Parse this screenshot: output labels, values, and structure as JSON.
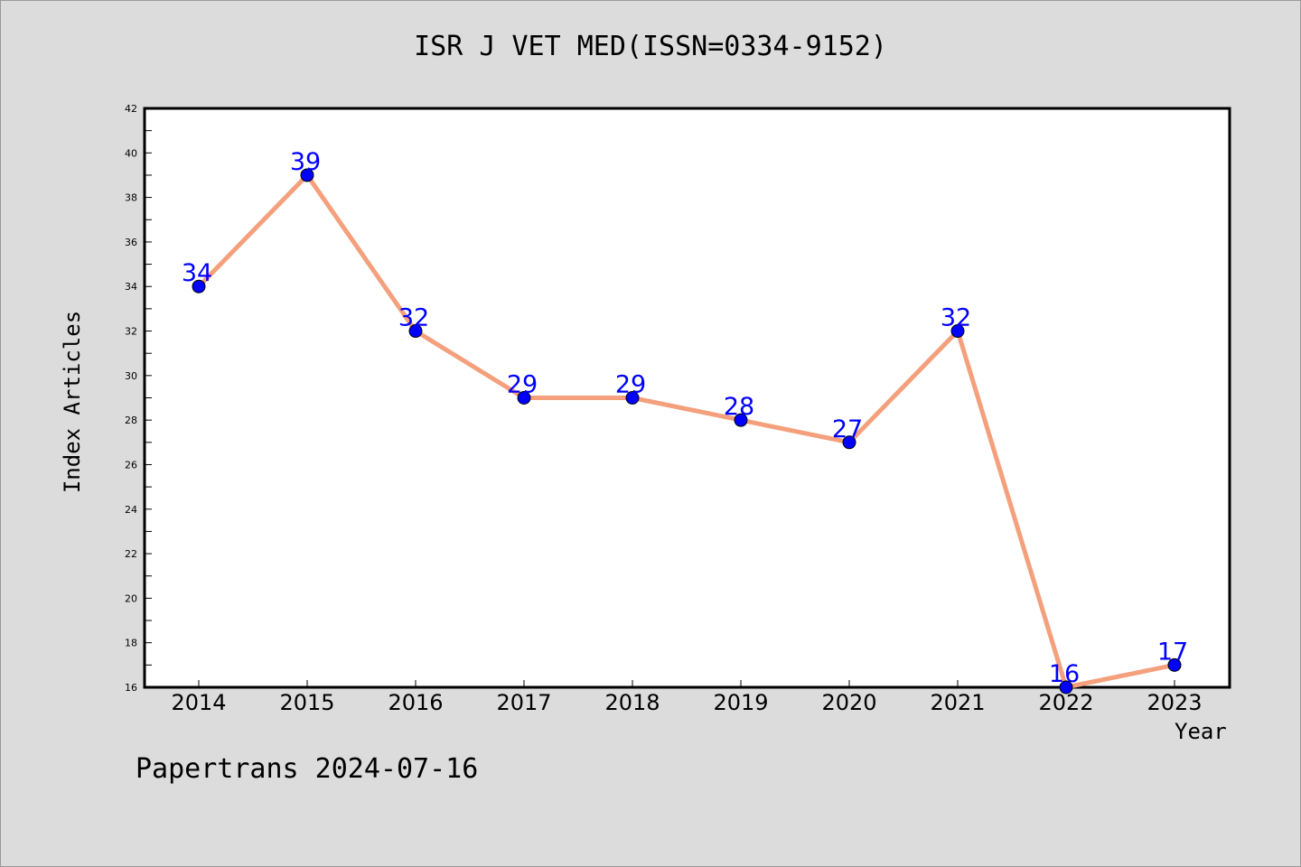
{
  "chart_data": {
    "type": "line",
    "title": "ISR J VET MED(ISSN=0334-9152)",
    "xlabel": "Year",
    "ylabel": "Index Articles",
    "categories": [
      "2014",
      "2015",
      "2016",
      "2017",
      "2018",
      "2019",
      "2020",
      "2021",
      "2022",
      "2023"
    ],
    "series": [
      {
        "values": [
          34,
          39,
          32,
          29,
          29,
          28,
          27,
          32,
          16,
          17
        ]
      }
    ],
    "ylim": [
      16,
      42
    ],
    "yticks": [
      "16",
      "18",
      "20",
      "22",
      "24",
      "26",
      "28",
      "30",
      "32",
      "34",
      "36",
      "38",
      "40",
      "42"
    ],
    "data_labels": [
      "34",
      "39",
      "32",
      "29",
      "29",
      "28",
      "27",
      "32",
      "16",
      "17"
    ],
    "grid": false,
    "colors": {
      "line": "#f4a07c",
      "marker": "#0000ff",
      "label": "#0000ff",
      "background": "#dcdcdc",
      "plot_background": "#ffffff"
    }
  },
  "footer": "Papertrans 2024-07-16"
}
